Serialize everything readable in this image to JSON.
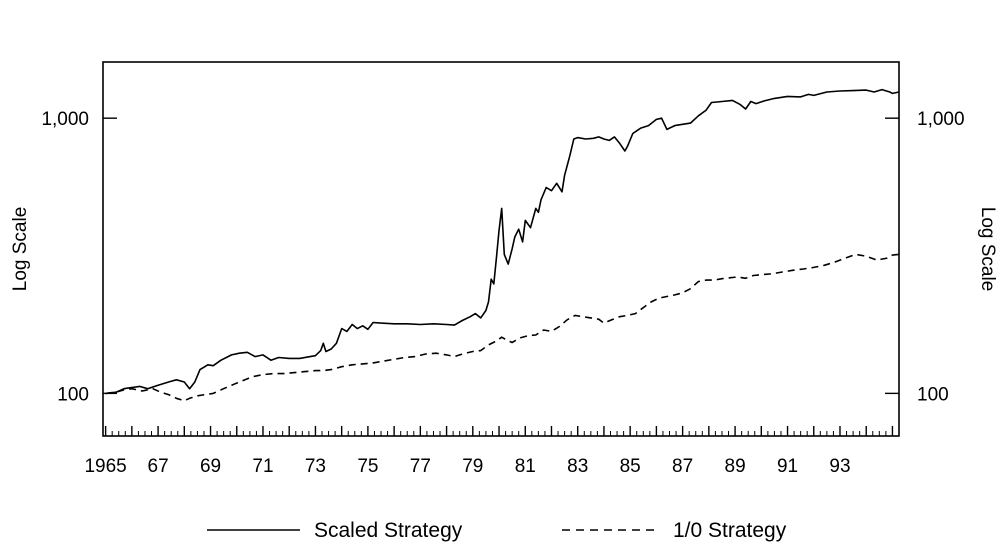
{
  "chart_data": {
    "type": "line",
    "title": "",
    "xlabel": "",
    "ylabel": "Log Scale",
    "ylabel_right": "Log Scale",
    "y_scale": "log",
    "ylim": [
      70,
      1600
    ],
    "xlim": [
      1964.9,
      1995.25
    ],
    "grid": false,
    "legend_position": "bottom",
    "x_tick_labels": [
      {
        "x": 1965,
        "label": "1965"
      },
      {
        "x": 1967,
        "label": "67"
      },
      {
        "x": 1969,
        "label": "69"
      },
      {
        "x": 1971,
        "label": "71"
      },
      {
        "x": 1973,
        "label": "73"
      },
      {
        "x": 1975,
        "label": "75"
      },
      {
        "x": 1977,
        "label": "77"
      },
      {
        "x": 1979,
        "label": "79"
      },
      {
        "x": 1981,
        "label": "81"
      },
      {
        "x": 1983,
        "label": "83"
      },
      {
        "x": 1985,
        "label": "85"
      },
      {
        "x": 1987,
        "label": "87"
      },
      {
        "x": 1989,
        "label": "89"
      },
      {
        "x": 1991,
        "label": "91"
      },
      {
        "x": 1993,
        "label": "93"
      }
    ],
    "y_ticks": [
      {
        "value": 100,
        "label": "100"
      },
      {
        "value": 1000,
        "label": "1,000"
      }
    ],
    "series": [
      {
        "name": "Scaled Strategy",
        "style": "solid",
        "color": "#000000",
        "points": [
          [
            1965.0,
            100
          ],
          [
            1965.4,
            101
          ],
          [
            1965.7,
            104
          ],
          [
            1966.0,
            105
          ],
          [
            1966.3,
            106
          ],
          [
            1966.6,
            104
          ],
          [
            1967.0,
            107
          ],
          [
            1967.4,
            110
          ],
          [
            1967.7,
            112
          ],
          [
            1968.0,
            110
          ],
          [
            1968.2,
            104
          ],
          [
            1968.4,
            110
          ],
          [
            1968.6,
            122
          ],
          [
            1968.9,
            127
          ],
          [
            1969.1,
            126
          ],
          [
            1969.4,
            132
          ],
          [
            1969.8,
            138
          ],
          [
            1970.1,
            140
          ],
          [
            1970.4,
            141
          ],
          [
            1970.7,
            136
          ],
          [
            1971.0,
            138
          ],
          [
            1971.3,
            132
          ],
          [
            1971.6,
            135
          ],
          [
            1972.0,
            134
          ],
          [
            1972.4,
            134
          ],
          [
            1972.8,
            136
          ],
          [
            1973.0,
            137
          ],
          [
            1973.2,
            143
          ],
          [
            1973.3,
            152
          ],
          [
            1973.4,
            142
          ],
          [
            1973.6,
            145
          ],
          [
            1973.8,
            152
          ],
          [
            1974.0,
            172
          ],
          [
            1974.2,
            168
          ],
          [
            1974.4,
            178
          ],
          [
            1974.6,
            172
          ],
          [
            1974.8,
            176
          ],
          [
            1975.0,
            171
          ],
          [
            1975.2,
            181
          ],
          [
            1975.5,
            180
          ],
          [
            1976.0,
            179
          ],
          [
            1976.5,
            179
          ],
          [
            1977.0,
            178
          ],
          [
            1977.5,
            179
          ],
          [
            1978.0,
            178
          ],
          [
            1978.3,
            177
          ],
          [
            1978.6,
            184
          ],
          [
            1978.9,
            190
          ],
          [
            1979.1,
            195
          ],
          [
            1979.3,
            188
          ],
          [
            1979.5,
            200
          ],
          [
            1979.6,
            215
          ],
          [
            1979.7,
            260
          ],
          [
            1979.8,
            250
          ],
          [
            1979.9,
            310
          ],
          [
            1980.0,
            390
          ],
          [
            1980.1,
            470
          ],
          [
            1980.2,
            320
          ],
          [
            1980.35,
            295
          ],
          [
            1980.5,
            335
          ],
          [
            1980.6,
            370
          ],
          [
            1980.75,
            395
          ],
          [
            1980.9,
            355
          ],
          [
            1981.0,
            425
          ],
          [
            1981.2,
            400
          ],
          [
            1981.4,
            470
          ],
          [
            1981.5,
            455
          ],
          [
            1981.6,
            505
          ],
          [
            1981.8,
            560
          ],
          [
            1982.0,
            545
          ],
          [
            1982.2,
            580
          ],
          [
            1982.4,
            540
          ],
          [
            1982.5,
            620
          ],
          [
            1982.7,
            730
          ],
          [
            1982.85,
            840
          ],
          [
            1983.0,
            850
          ],
          [
            1983.3,
            840
          ],
          [
            1983.6,
            845
          ],
          [
            1983.8,
            855
          ],
          [
            1984.0,
            840
          ],
          [
            1984.2,
            830
          ],
          [
            1984.4,
            855
          ],
          [
            1984.6,
            810
          ],
          [
            1984.8,
            760
          ],
          [
            1984.9,
            790
          ],
          [
            1985.1,
            880
          ],
          [
            1985.4,
            920
          ],
          [
            1985.7,
            940
          ],
          [
            1986.0,
            990
          ],
          [
            1986.2,
            1000
          ],
          [
            1986.4,
            910
          ],
          [
            1986.7,
            940
          ],
          [
            1987.0,
            950
          ],
          [
            1987.3,
            960
          ],
          [
            1987.6,
            1020
          ],
          [
            1987.9,
            1070
          ],
          [
            1988.1,
            1140
          ],
          [
            1988.5,
            1150
          ],
          [
            1988.9,
            1160
          ],
          [
            1989.2,
            1120
          ],
          [
            1989.4,
            1080
          ],
          [
            1989.6,
            1150
          ],
          [
            1989.8,
            1130
          ],
          [
            1990.1,
            1155
          ],
          [
            1990.5,
            1180
          ],
          [
            1991.0,
            1200
          ],
          [
            1991.5,
            1195
          ],
          [
            1991.8,
            1220
          ],
          [
            1992.0,
            1210
          ],
          [
            1992.5,
            1245
          ],
          [
            1993.0,
            1255
          ],
          [
            1993.5,
            1260
          ],
          [
            1994.0,
            1265
          ],
          [
            1994.3,
            1245
          ],
          [
            1994.6,
            1270
          ],
          [
            1994.9,
            1245
          ],
          [
            1995.0,
            1230
          ],
          [
            1995.25,
            1245
          ]
        ]
      },
      {
        "name": "1/0 Strategy",
        "style": "dashed",
        "color": "#000000",
        "points": [
          [
            1965.0,
            100
          ],
          [
            1965.4,
            101
          ],
          [
            1965.7,
            103
          ],
          [
            1966.0,
            104
          ],
          [
            1966.4,
            102
          ],
          [
            1966.8,
            104
          ],
          [
            1967.1,
            101
          ],
          [
            1967.4,
            99
          ],
          [
            1967.7,
            96
          ],
          [
            1968.0,
            94
          ],
          [
            1968.2,
            96
          ],
          [
            1968.5,
            98
          ],
          [
            1968.8,
            99
          ],
          [
            1969.1,
            100
          ],
          [
            1969.5,
            104
          ],
          [
            1969.9,
            108
          ],
          [
            1970.2,
            111
          ],
          [
            1970.6,
            115
          ],
          [
            1971.0,
            117
          ],
          [
            1971.4,
            118
          ],
          [
            1971.8,
            118
          ],
          [
            1972.2,
            119
          ],
          [
            1972.6,
            120
          ],
          [
            1973.0,
            121
          ],
          [
            1973.3,
            121
          ],
          [
            1973.6,
            122
          ],
          [
            1974.0,
            125
          ],
          [
            1974.4,
            127
          ],
          [
            1974.8,
            128
          ],
          [
            1975.2,
            129
          ],
          [
            1975.6,
            131
          ],
          [
            1976.0,
            133
          ],
          [
            1976.4,
            135
          ],
          [
            1976.8,
            136
          ],
          [
            1977.2,
            139
          ],
          [
            1977.6,
            140
          ],
          [
            1978.0,
            138
          ],
          [
            1978.3,
            136
          ],
          [
            1978.6,
            139
          ],
          [
            1979.0,
            142
          ],
          [
            1979.3,
            143
          ],
          [
            1979.6,
            150
          ],
          [
            1979.9,
            155
          ],
          [
            1980.1,
            160
          ],
          [
            1980.3,
            156
          ],
          [
            1980.5,
            153
          ],
          [
            1980.8,
            159
          ],
          [
            1981.1,
            162
          ],
          [
            1981.4,
            163
          ],
          [
            1981.7,
            170
          ],
          [
            1982.0,
            168
          ],
          [
            1982.3,
            175
          ],
          [
            1982.6,
            185
          ],
          [
            1982.9,
            192
          ],
          [
            1983.2,
            190
          ],
          [
            1983.5,
            188
          ],
          [
            1983.8,
            186
          ],
          [
            1984.0,
            180
          ],
          [
            1984.3,
            185
          ],
          [
            1984.6,
            190
          ],
          [
            1984.9,
            192
          ],
          [
            1985.2,
            195
          ],
          [
            1985.5,
            205
          ],
          [
            1985.8,
            215
          ],
          [
            1986.1,
            222
          ],
          [
            1986.4,
            225
          ],
          [
            1986.7,
            228
          ],
          [
            1987.0,
            232
          ],
          [
            1987.3,
            240
          ],
          [
            1987.6,
            255
          ],
          [
            1987.9,
            258
          ],
          [
            1988.2,
            258
          ],
          [
            1988.5,
            261
          ],
          [
            1988.8,
            263
          ],
          [
            1989.1,
            265
          ],
          [
            1989.4,
            262
          ],
          [
            1989.7,
            268
          ],
          [
            1990.0,
            270
          ],
          [
            1990.4,
            272
          ],
          [
            1990.8,
            276
          ],
          [
            1991.2,
            280
          ],
          [
            1991.6,
            283
          ],
          [
            1992.0,
            287
          ],
          [
            1992.4,
            292
          ],
          [
            1992.8,
            300
          ],
          [
            1993.2,
            310
          ],
          [
            1993.6,
            320
          ],
          [
            1994.0,
            315
          ],
          [
            1994.4,
            305
          ],
          [
            1994.8,
            310
          ],
          [
            1995.0,
            318
          ],
          [
            1995.25,
            320
          ]
        ]
      }
    ]
  }
}
